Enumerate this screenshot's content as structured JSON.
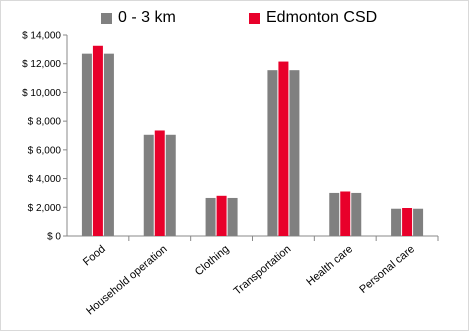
{
  "chart_data": {
    "type": "bar",
    "categories": [
      "Food",
      "Household operation",
      "Clothing",
      "Transportation",
      "Health care",
      "Personal care"
    ],
    "series": [
      {
        "name": "0 - 3 km",
        "color": "#808080",
        "values": [
          12700,
          7050,
          2650,
          11550,
          3000,
          1900
        ]
      },
      {
        "name": "Edmonton CSD",
        "color": "#e8002a",
        "values": [
          13250,
          7350,
          2800,
          12150,
          3100,
          1950
        ]
      }
    ],
    "y_ticks": [
      "$ 0",
      "$ 2,000",
      "$ 4,000",
      "$ 6,000",
      "$ 8,000",
      "$ 10,000",
      "$ 12,000",
      "$ 14,000"
    ],
    "ylim": [
      0,
      14000
    ],
    "grid": false,
    "legend_position": "top"
  }
}
